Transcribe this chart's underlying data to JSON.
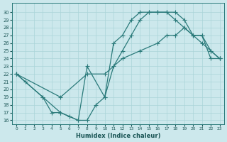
{
  "xlabel": "Humidex (Indice chaleur)",
  "bg_color": "#cce8ec",
  "grid_color": "#aad4d8",
  "line_color": "#2a7a7a",
  "xlim": [
    -0.5,
    23.5
  ],
  "ylim": [
    15.5,
    31.2
  ],
  "xticks": [
    0,
    1,
    2,
    3,
    4,
    5,
    6,
    7,
    8,
    9,
    10,
    11,
    12,
    13,
    14,
    15,
    16,
    17,
    18,
    19,
    20,
    21,
    22,
    23
  ],
  "yticks": [
    16,
    17,
    18,
    19,
    20,
    21,
    22,
    23,
    24,
    25,
    26,
    27,
    28,
    29,
    30
  ],
  "line1": {
    "x": [
      0,
      1,
      3,
      4,
      5,
      6,
      7,
      8,
      9,
      10,
      11,
      12,
      13,
      14,
      15,
      16,
      17,
      18,
      19,
      20,
      21,
      22,
      23
    ],
    "y": [
      22,
      21,
      19,
      17,
      17,
      16.5,
      16,
      16,
      18,
      19,
      23,
      25,
      27,
      29,
      30,
      30,
      30,
      30,
      29,
      27,
      26,
      25,
      24
    ]
  },
  "line2": {
    "x": [
      0,
      3,
      5,
      7,
      8,
      10,
      11,
      12,
      13,
      14,
      15,
      16,
      17,
      18,
      19,
      20,
      21,
      22,
      23
    ],
    "y": [
      22,
      19,
      17,
      16,
      23,
      19,
      26,
      27,
      29,
      30,
      30,
      30,
      30,
      29,
      28,
      27,
      27,
      24,
      24
    ]
  },
  "line3": {
    "x": [
      0,
      5,
      8,
      10,
      12,
      14,
      16,
      17,
      18,
      19,
      20,
      21,
      22,
      23
    ],
    "y": [
      22,
      19,
      22,
      22,
      24,
      25,
      26,
      27,
      27,
      28,
      27,
      27,
      25,
      24
    ]
  }
}
